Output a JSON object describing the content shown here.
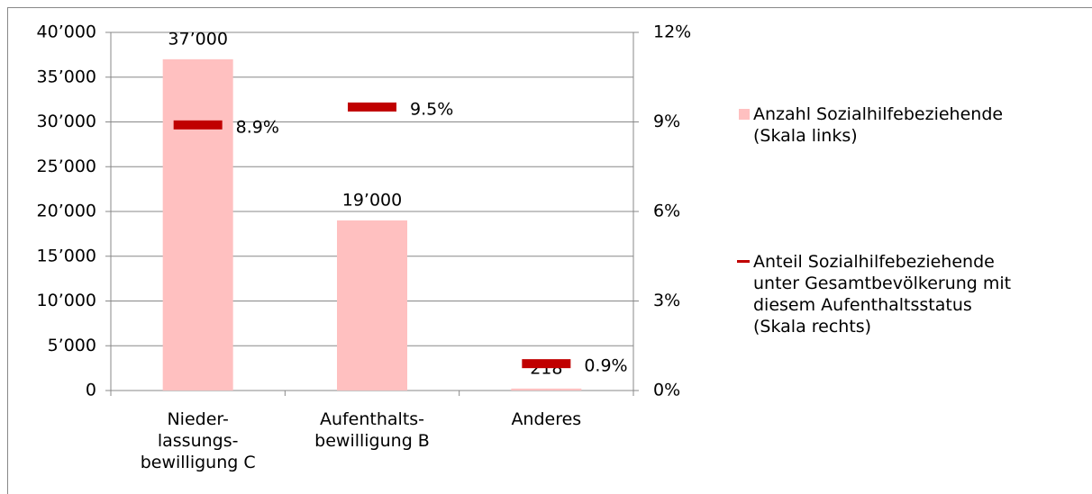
{
  "chart_data": {
    "type": "bar",
    "categories": [
      "Nieder-\nlassungs-\nbewilligung C",
      "Aufenthalts-\nbewilligung B",
      "Anderes"
    ],
    "series": [
      {
        "name": "Anzahl Sozialhilfebeziehende\n(Skala links)",
        "type": "bar",
        "color": "#ffc0c0",
        "values": [
          37000,
          19000,
          218
        ],
        "value_labels": [
          "37’000",
          "19’000",
          "218"
        ]
      },
      {
        "name": "Anteil Sozialhilfebeziehende\nunter Gesamtbevölkerung mit\ndiesem Aufenthaltsstatus\n(Skala rechts)",
        "type": "marker",
        "axis": "y2",
        "color": "#c00000",
        "values": [
          8.9,
          9.5,
          0.9
        ],
        "value_labels": [
          "8.9%",
          "9.5%",
          "0.9%"
        ]
      }
    ],
    "ylim": [
      0,
      40000
    ],
    "yticks": [
      0,
      {
        "value": 5000,
        "label": "5’000"
      },
      {
        "value": 10000,
        "label": "10’000"
      },
      {
        "value": 15000,
        "label": "15’000"
      },
      {
        "value": 20000,
        "label": "20’000"
      },
      {
        "value": 25000,
        "label": "25’000"
      },
      {
        "value": 30000,
        "label": "30’000"
      },
      {
        "value": 35000,
        "label": "35’000"
      },
      {
        "value": 40000,
        "label": "40’000"
      }
    ],
    "y2lim": [
      0,
      12
    ],
    "y2ticks": [
      {
        "value": 0,
        "label": "0%"
      },
      {
        "value": 3,
        "label": "3%"
      },
      {
        "value": 6,
        "label": "6%"
      },
      {
        "value": 9,
        "label": "9%"
      },
      {
        "value": 12,
        "label": "12%"
      }
    ],
    "grid": true,
    "legend": "right"
  }
}
